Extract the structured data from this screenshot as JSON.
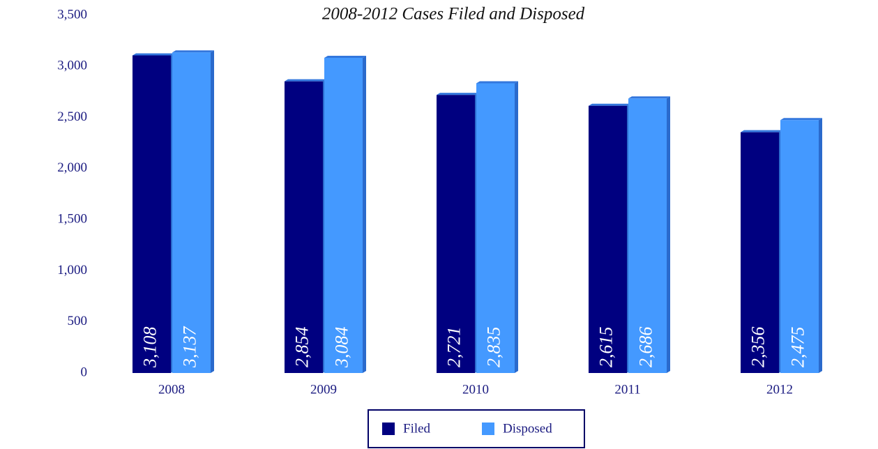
{
  "chart_data": {
    "type": "bar",
    "subtitle": "2008-2012 Cases Filed and Disposed",
    "categories": [
      "2008",
      "2009",
      "2010",
      "2011",
      "2012"
    ],
    "series": [
      {
        "name": "Filed",
        "color": "#000080",
        "values": [
          3108,
          2854,
          2721,
          2615,
          2356
        ],
        "value_labels": [
          "3,108",
          "2,854",
          "2,721",
          "2,615",
          "2,356"
        ]
      },
      {
        "name": "Disposed",
        "color": "#4499ff",
        "values": [
          3137,
          3084,
          2835,
          2686,
          2475
        ],
        "value_labels": [
          "3,137",
          "3,084",
          "2,835",
          "2,686",
          "2,475"
        ]
      }
    ],
    "ylim": [
      0,
      3500
    ],
    "yticks": [
      0,
      500,
      {
        "value": 1000,
        "label": "1,000"
      },
      {
        "value": 1500,
        "label": "1,500"
      },
      {
        "value": 2000,
        "label": "2,000"
      },
      {
        "value": 2500,
        "label": "2,500"
      },
      {
        "value": 3000,
        "label": "3,000"
      },
      {
        "value": 3500,
        "label": "3,500"
      }
    ],
    "legend": "bottom"
  }
}
